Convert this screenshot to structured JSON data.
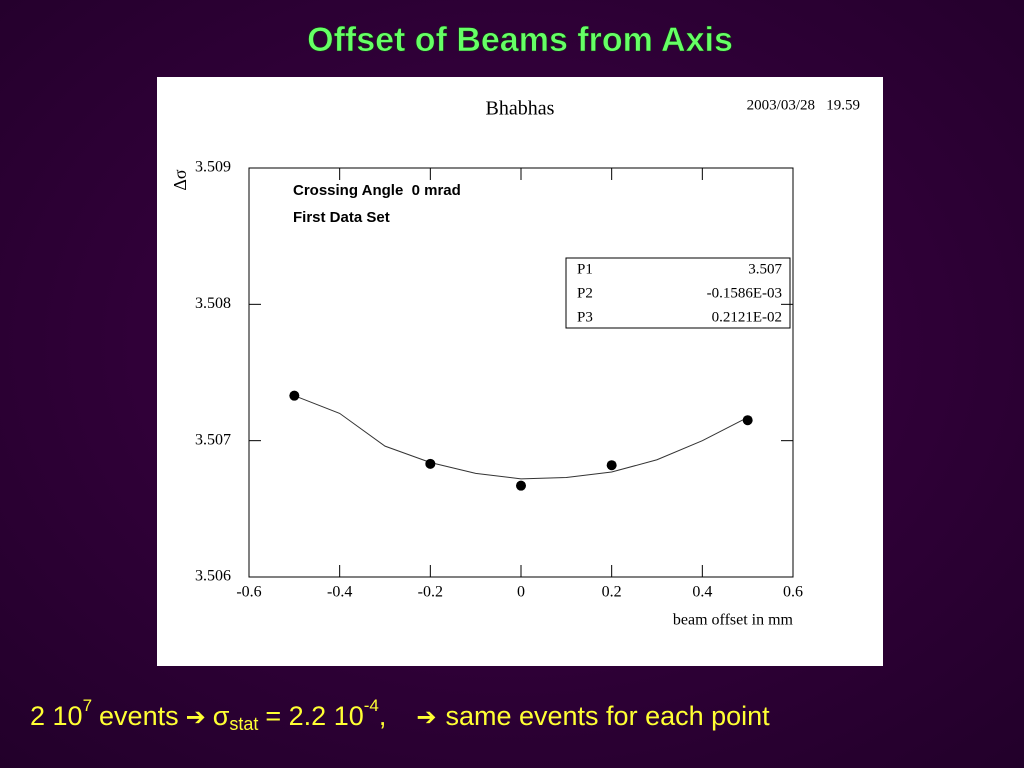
{
  "slide": {
    "title": "Offset of Beams from Axis",
    "footer": {
      "count": "2 10",
      "count_exp": "7",
      "events": "events",
      "sigma": "σ",
      "sigma_sub": "stat",
      "equals": "= 2.2 10",
      "exp": "-4",
      "sep": ",",
      "note": "same events for each point"
    }
  },
  "chart_data": {
    "type": "scatter",
    "title": "Bhabhas",
    "timestamp": "2003/03/28   19.59",
    "y_label": "Δσ",
    "x_label": "beam offset in mm",
    "annotations": [
      "Crossing Angle  0 mrad",
      "First Data Set"
    ],
    "fit_parameters": [
      [
        "P1",
        "3.507"
      ],
      [
        "P2",
        "-0.1586E-03"
      ],
      [
        "P3",
        "0.2121E-02"
      ]
    ],
    "x": [
      -0.5,
      -0.2,
      0,
      0.2,
      0.5
    ],
    "values": [
      3.50733,
      3.50683,
      3.50667,
      3.50682,
      3.50715
    ],
    "color": "#000000",
    "fit": {
      "x": [
        -0.5,
        -0.4,
        -0.3,
        -0.2,
        -0.1,
        0,
        0.1,
        0.2,
        0.3,
        0.4,
        0.5
      ],
      "values": [
        3.50733,
        3.5072,
        3.50696,
        3.50684,
        3.50676,
        3.50672,
        3.50673,
        3.50677,
        3.50686,
        3.507,
        3.50717
      ]
    },
    "xlim": [
      -0.6,
      0.6
    ],
    "ylim": [
      3.506,
      3.509
    ],
    "xticks": [
      -0.6,
      -0.4,
      -0.2,
      0,
      0.2,
      0.4,
      0.6
    ],
    "yticks": [
      3.506,
      3.507,
      3.508,
      3.509
    ]
  }
}
